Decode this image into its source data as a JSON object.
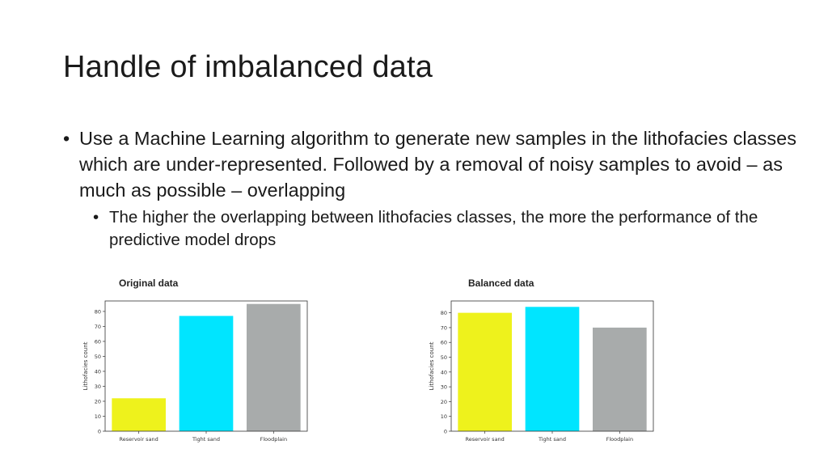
{
  "slide": {
    "title": "Handle of imbalanced data",
    "bullet_main": "Use a Machine Learning algorithm to generate new samples in the lithofacies classes which are under-represented. Followed by a removal of noisy samples to avoid – as much as possible – overlapping",
    "bullet_sub": "The higher the overlapping between lithofacies classes, the more the performance of the predictive model drops",
    "bullet_symbol": "•"
  },
  "chart_data": [
    {
      "type": "bar",
      "title": "Original data",
      "categories": [
        "Reservoir sand",
        "Tight sand",
        "Floodplain"
      ],
      "values": [
        22,
        77,
        85
      ],
      "colors": [
        "#eef21c",
        "#00e5ff",
        "#a8abab"
      ],
      "ylabel": "Lithofacies count",
      "xlabel": "",
      "ylim": [
        0,
        87
      ],
      "yticks": [
        0,
        10,
        20,
        30,
        40,
        50,
        60,
        70,
        80
      ],
      "grid": false
    },
    {
      "type": "bar",
      "title": "Balanced data",
      "categories": [
        "Reservoir sand",
        "Tight sand",
        "Floodplain"
      ],
      "values": [
        80,
        84,
        70
      ],
      "colors": [
        "#eef21c",
        "#00e5ff",
        "#a8abab"
      ],
      "ylabel": "Lithofacies count",
      "xlabel": "",
      "ylim": [
        0,
        88
      ],
      "yticks": [
        0,
        10,
        20,
        30,
        40,
        50,
        60,
        70,
        80
      ],
      "grid": false
    }
  ]
}
